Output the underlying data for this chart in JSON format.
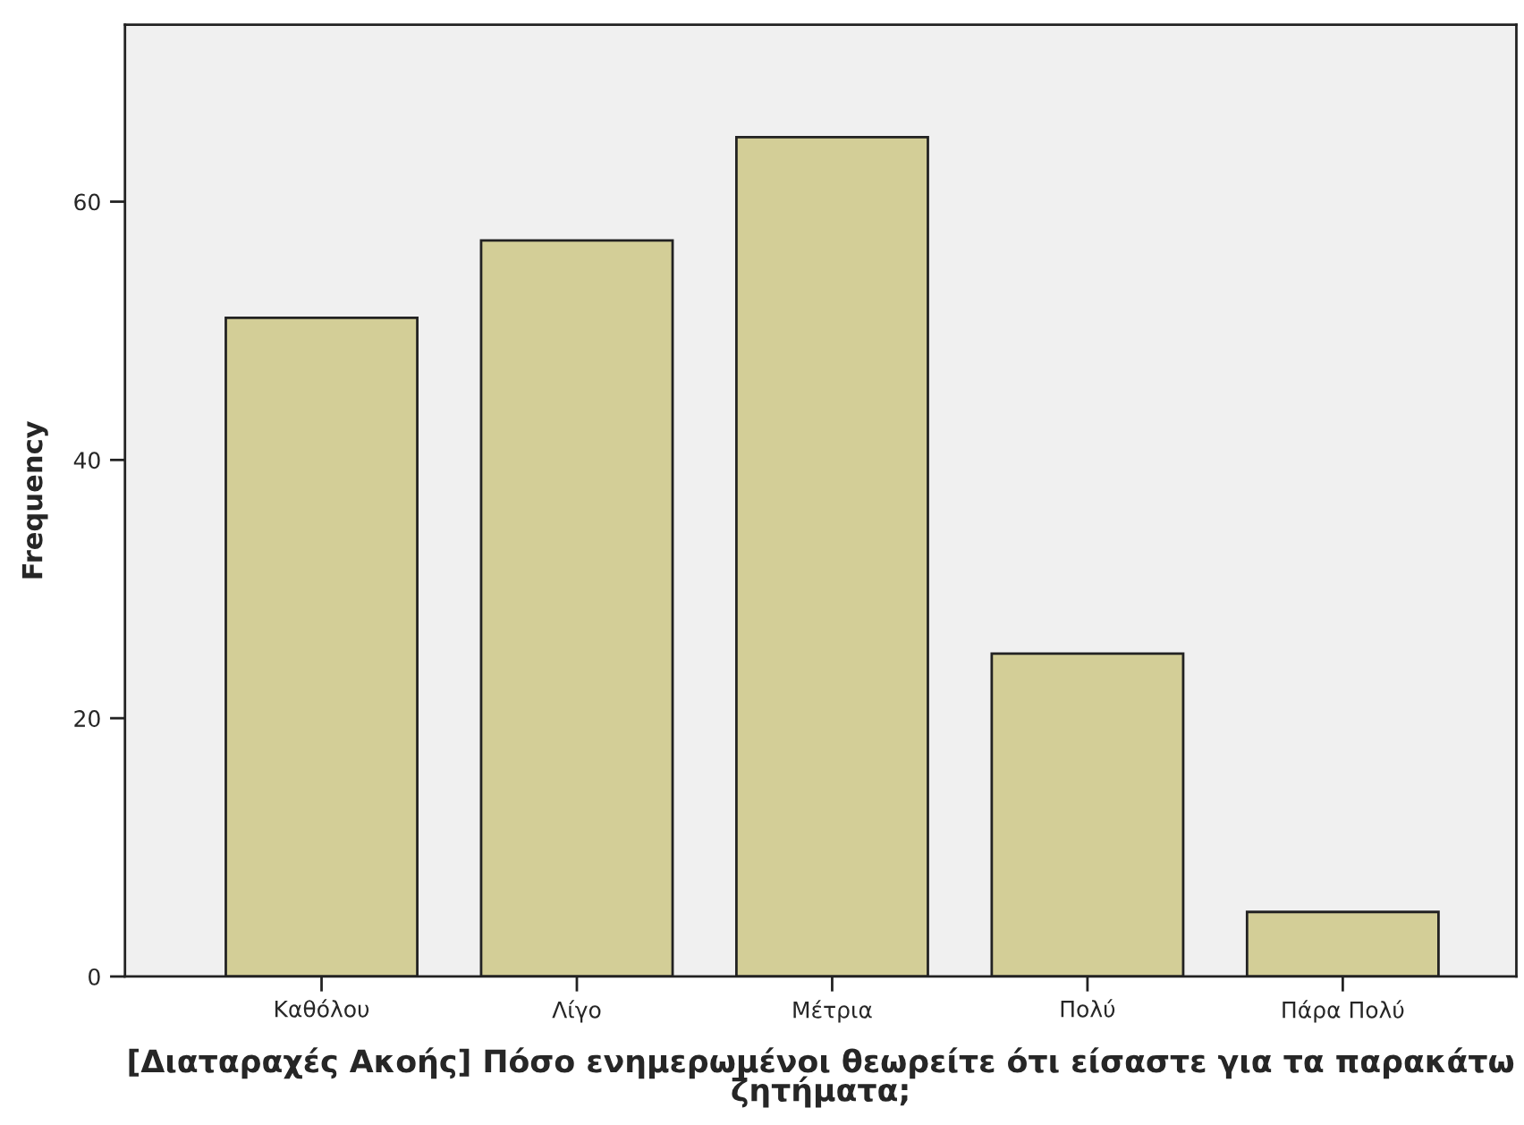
{
  "chart_data": {
    "type": "bar",
    "xlabel": "[Διαταραχές Ακοής] Πόσο ενημερωμένοι θεωρείτε ότι είσαστε για τα παρακάτω ζητήματα;",
    "ylabel": "Frequency",
    "categories": [
      "Καθόλου",
      "Λίγο",
      "Μέτρια",
      "Πολύ",
      "Πάρα Πολύ"
    ],
    "values": [
      51,
      57,
      65,
      25,
      5
    ],
    "color": "#d3ce97",
    "ylim": [
      0,
      73.7
    ],
    "yticks": [
      0,
      20,
      40,
      60
    ],
    "grid": false,
    "legend": false
  }
}
